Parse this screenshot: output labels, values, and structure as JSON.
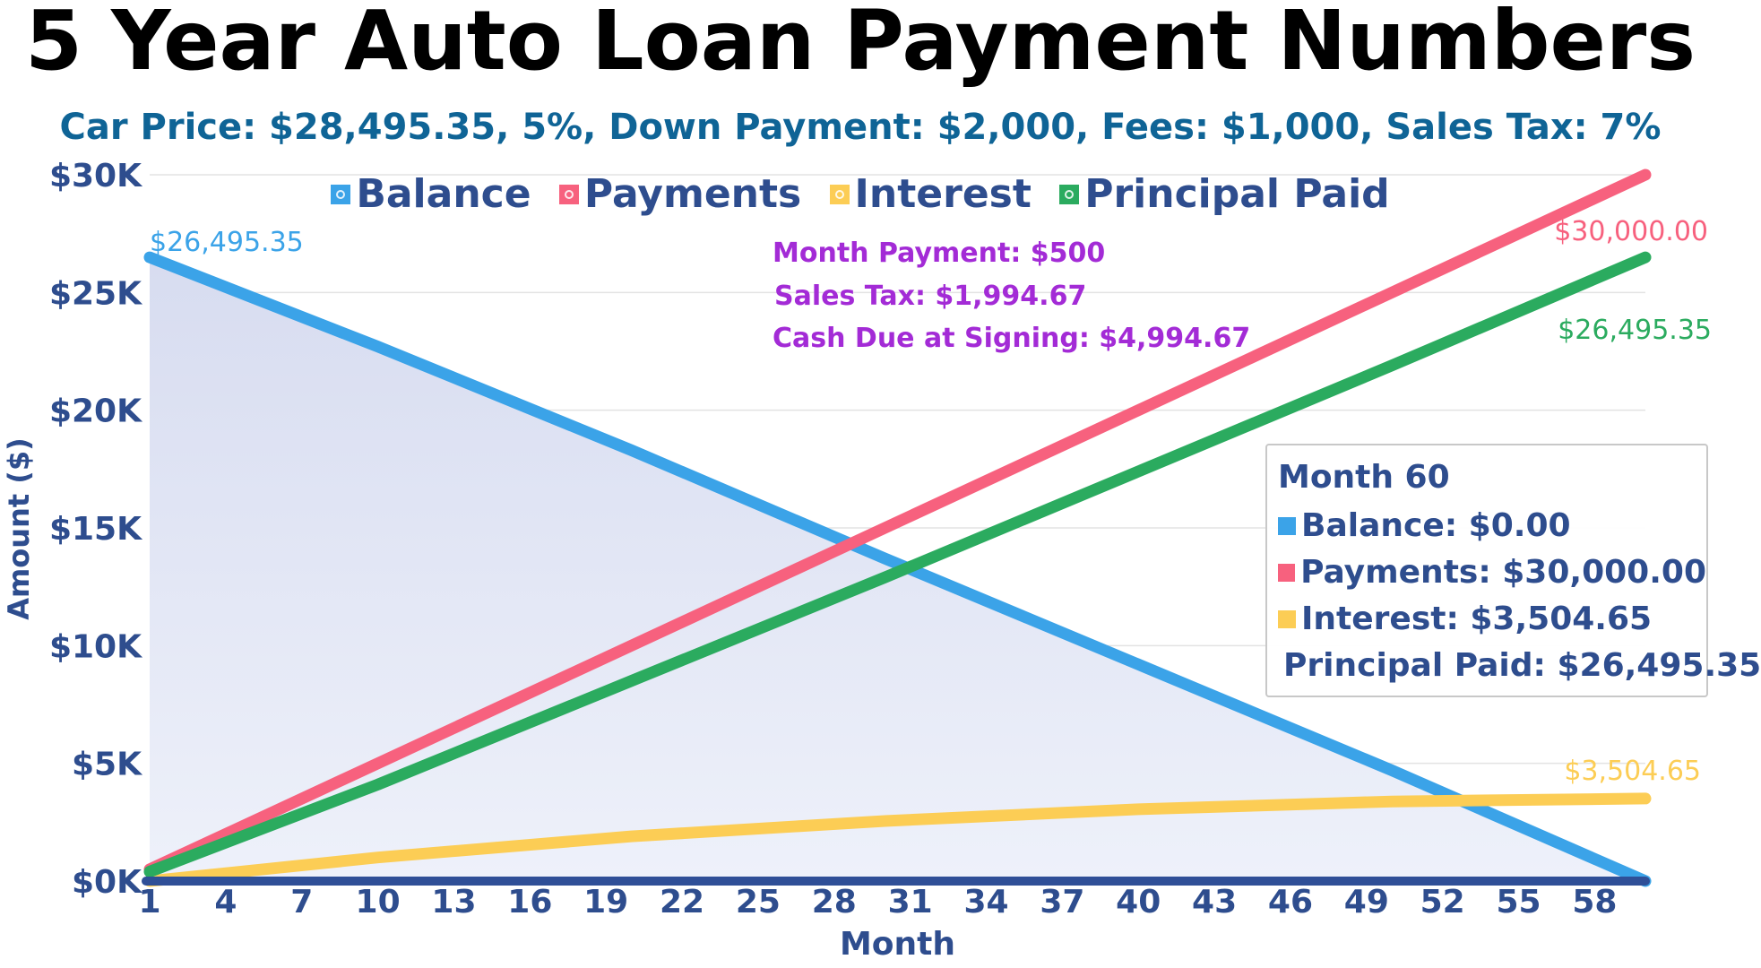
{
  "chart_data": {
    "type": "area",
    "title": "5 Year Auto Loan Payment Numbers",
    "subtitle": "Car Price: $28,495.35, 5%, Down Payment: $2,000, Fees: $1,000, Sales Tax: 7%",
    "xlabel": "Month",
    "ylabel": "Amount ($)",
    "xlim": [
      1,
      60
    ],
    "ylim": [
      0,
      30000
    ],
    "x_ticks": [
      1,
      4,
      7,
      10,
      13,
      16,
      19,
      22,
      25,
      28,
      31,
      34,
      37,
      40,
      43,
      46,
      49,
      52,
      55,
      58
    ],
    "y_ticks": [
      {
        "value": 0,
        "label": "$0K"
      },
      {
        "value": 5000,
        "label": "$5K"
      },
      {
        "value": 10000,
        "label": "$10K"
      },
      {
        "value": 15000,
        "label": "$15K"
      },
      {
        "value": 20000,
        "label": "$20K"
      },
      {
        "value": 25000,
        "label": "$25K"
      },
      {
        "value": 30000,
        "label": "$30K"
      }
    ],
    "grid": true,
    "legend_position": "top",
    "series": [
      {
        "name": "Balance",
        "color": "#3ba3e8",
        "x": [
          1,
          10,
          20,
          30,
          40,
          50,
          60
        ],
        "y": [
          26495.35,
          22700,
          18300,
          13700,
          9200,
          4700,
          0
        ],
        "start_label": "$26,495.35",
        "filled": true
      },
      {
        "name": "Payments",
        "color": "#f7617e",
        "x": [
          1,
          60
        ],
        "y": [
          500,
          30000
        ],
        "end_label": "$30,000.00"
      },
      {
        "name": "Interest",
        "color": "#fccd55",
        "x": [
          1,
          10,
          20,
          30,
          40,
          50,
          60
        ],
        "y": [
          0,
          1000,
          1900,
          2550,
          3050,
          3380,
          3504.65
        ],
        "end_label": "$3,504.65"
      },
      {
        "name": "Principal Paid",
        "color": "#2bab5f",
        "x": [
          1,
          10,
          20,
          30,
          40,
          50,
          60
        ],
        "y": [
          400,
          4100,
          8500,
          12900,
          17400,
          21900,
          26495.35
        ],
        "end_label": "$26,495.35"
      }
    ],
    "annotations": [
      "Month Payment: $500",
      "Sales Tax: $1,994.67",
      "Cash Due at Signing: $4,994.67"
    ],
    "tooltip": {
      "title": "Month 60",
      "rows": [
        {
          "label": "Balance: $0.00",
          "color": "#3ba3e8"
        },
        {
          "label": "Payments: $30,000.00",
          "color": "#f7617e"
        },
        {
          "label": "Interest: $3,504.65",
          "color": "#fccd55"
        },
        {
          "label": "Principal Paid: $26,495.35",
          "color": "#2bab5f"
        }
      ]
    }
  }
}
